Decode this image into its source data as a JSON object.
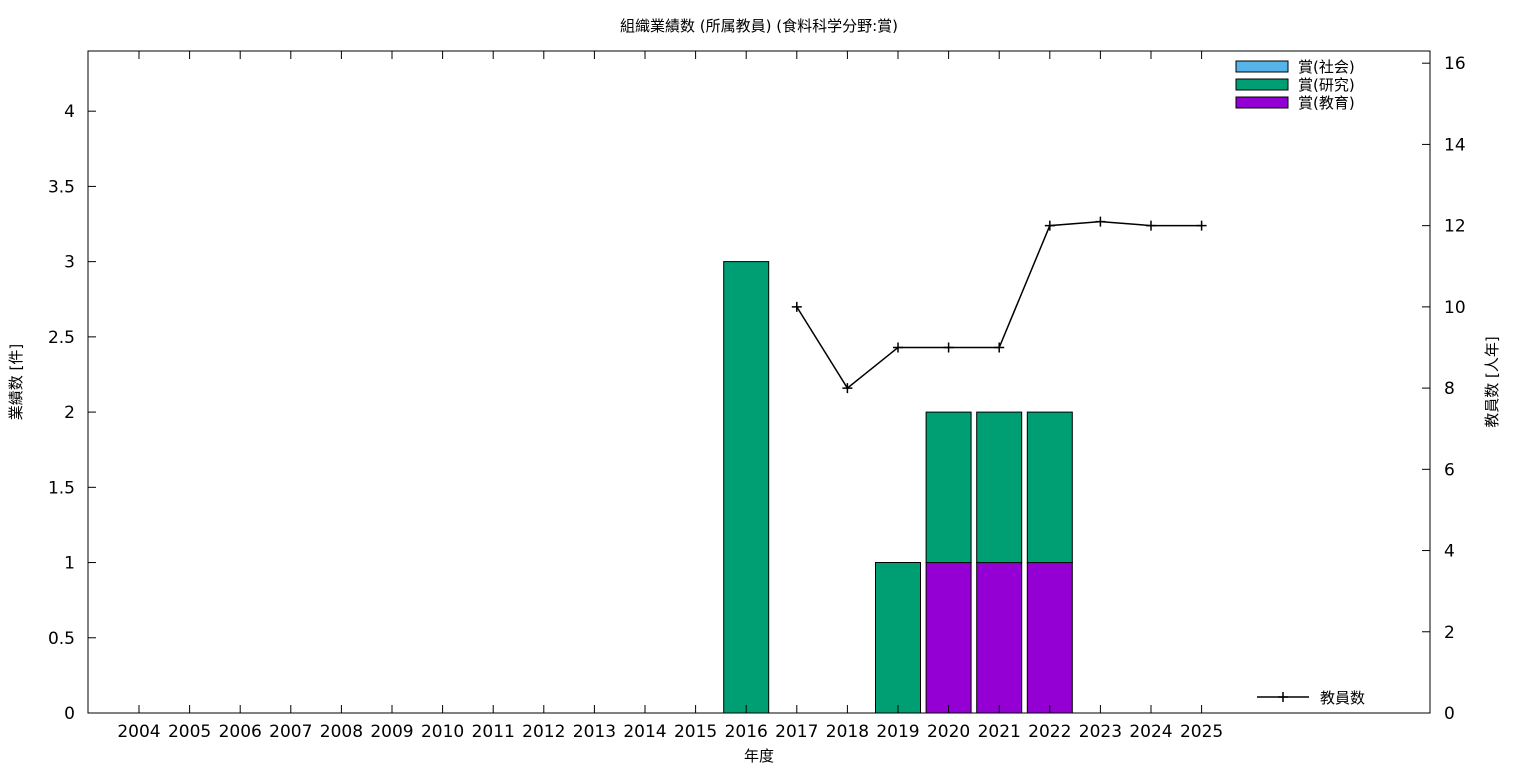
{
  "chart_data": {
    "type": "bar",
    "title": "組織業績数 (所属教員) (食料科学分野:賞)",
    "xlabel": "年度",
    "ylabel": "業績数 [件]",
    "y2label": "教員数 [人年]",
    "categories": [
      "2004",
      "2005",
      "2006",
      "2007",
      "2008",
      "2009",
      "2010",
      "2011",
      "2012",
      "2013",
      "2014",
      "2015",
      "2016",
      "2017",
      "2018",
      "2019",
      "2020",
      "2021",
      "2022",
      "2023",
      "2024",
      "2025"
    ],
    "ylim": [
      0,
      4.4
    ],
    "y2lim": [
      0,
      16.3
    ],
    "yticks": [
      "0",
      "0.5",
      "1",
      "1.5",
      "2",
      "2.5",
      "3",
      "3.5",
      "4"
    ],
    "y2ticks": [
      "0",
      "2",
      "4",
      "6",
      "8",
      "10",
      "12",
      "14",
      "16"
    ],
    "stacked": true,
    "grid": false,
    "legend_position": "top-right",
    "series": [
      {
        "name": "賞(教育)",
        "color": "#9400d3",
        "values": [
          0,
          0,
          0,
          0,
          0,
          0,
          0,
          0,
          0,
          0,
          0,
          0,
          0,
          0,
          0,
          0,
          1,
          1,
          1,
          0,
          0,
          0
        ]
      },
      {
        "name": "賞(研究)",
        "color": "#009e73",
        "values": [
          0,
          0,
          0,
          0,
          0,
          0,
          0,
          0,
          0,
          0,
          0,
          0,
          3,
          0,
          0,
          1,
          1,
          1,
          1,
          0,
          0,
          0
        ]
      },
      {
        "name": "賞(社会)",
        "color": "#56b4e9",
        "values": [
          0,
          0,
          0,
          0,
          0,
          0,
          0,
          0,
          0,
          0,
          0,
          0,
          0,
          0,
          0,
          0,
          0,
          0,
          0,
          0,
          0,
          0
        ]
      }
    ],
    "legend_order": [
      "賞(社会)",
      "賞(研究)",
      "賞(教育)"
    ],
    "line_series": {
      "name": "教員数",
      "color": "#000000",
      "axis": "right",
      "x": [
        "2017",
        "2018",
        "2019",
        "2020",
        "2021",
        "2022",
        "2023",
        "2024",
        "2025"
      ],
      "values": [
        10,
        8,
        9,
        9,
        9,
        12,
        12.1,
        12,
        12
      ],
      "legend_position": "bottom-right"
    }
  }
}
